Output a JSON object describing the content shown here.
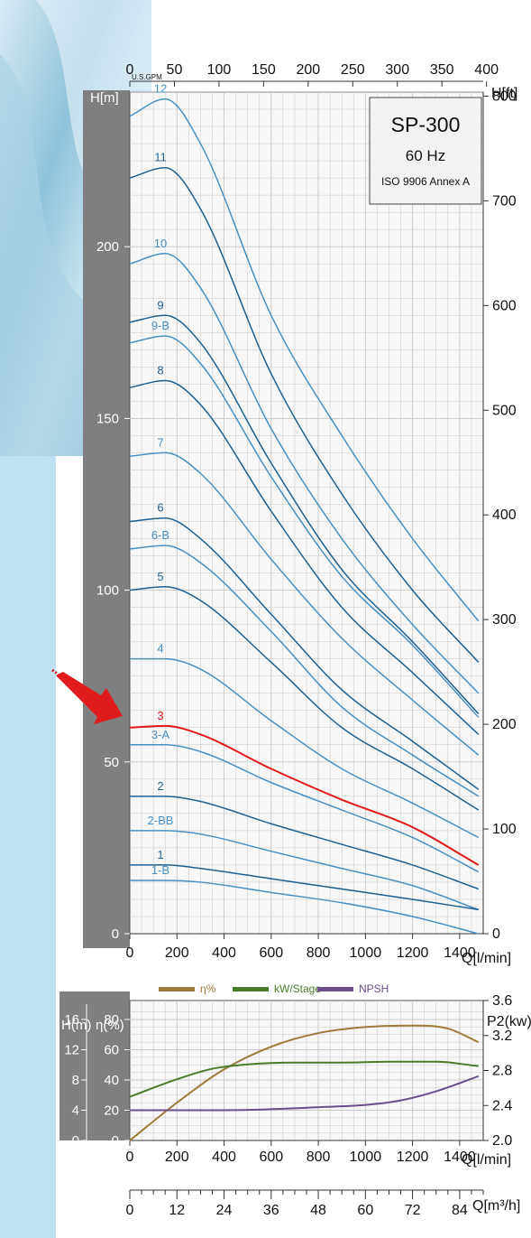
{
  "chart_data": [
    {
      "type": "line",
      "title": "SP-300",
      "frequency": "60 Hz",
      "standard": "ISO 9906 Annex A",
      "x_unit_label": "Q[l/min]",
      "x_top_unit_label": "U.S.GPM",
      "y_left_label": "H[m]",
      "y_right_label": "H[ft]",
      "xlim": [
        0,
        1500
      ],
      "ylim": [
        0,
        245
      ],
      "x_ticks": [
        "0",
        "200",
        "400",
        "600",
        "800",
        "1000",
        "1200",
        "1400"
      ],
      "x_top_ticks": [
        "0",
        "50",
        "100",
        "150",
        "200",
        "250",
        "300",
        "350",
        "400"
      ],
      "y_left_ticks": [
        "0",
        "50",
        "100",
        "150",
        "200"
      ],
      "y_right_ticks": [
        "0",
        "100",
        "200",
        "300",
        "400",
        "500",
        "600",
        "700",
        "800"
      ],
      "grid": true,
      "highlighted_curve": "3",
      "colors": {
        "dark": "#1f5f8f",
        "light": "#4a8fc2",
        "highlight": "#e01b1b",
        "panel": "#7f7f80",
        "grid": "#c8c8c8"
      },
      "series": [
        {
          "name": "12",
          "shade": "light",
          "x": [
            0,
            150,
            300,
            600,
            900,
            1200,
            1480
          ],
          "y": [
            238,
            243,
            230,
            180,
            145,
            115,
            91
          ]
        },
        {
          "name": "11",
          "shade": "dark",
          "x": [
            0,
            150,
            300,
            600,
            900,
            1200,
            1480
          ],
          "y": [
            220,
            223,
            211,
            163,
            128,
            100,
            79
          ]
        },
        {
          "name": "10",
          "shade": "light",
          "x": [
            0,
            150,
            300,
            600,
            900,
            1200,
            1480
          ],
          "y": [
            195,
            198,
            188,
            147,
            115,
            90,
            70
          ]
        },
        {
          "name": "9",
          "shade": "dark",
          "x": [
            0,
            150,
            300,
            600,
            900,
            1200,
            1480
          ],
          "y": [
            178,
            180,
            172,
            137,
            106,
            85,
            64
          ]
        },
        {
          "name": "9-B",
          "shade": "light",
          "x": [
            0,
            150,
            300,
            600,
            900,
            1200,
            1480
          ],
          "y": [
            172,
            174,
            166,
            133,
            104,
            84,
            63
          ]
        },
        {
          "name": "8",
          "shade": "dark",
          "x": [
            0,
            150,
            300,
            600,
            900,
            1200,
            1480
          ],
          "y": [
            159,
            161,
            154,
            123,
            95,
            76,
            58
          ]
        },
        {
          "name": "7",
          "shade": "light",
          "x": [
            0,
            150,
            300,
            600,
            900,
            1200,
            1480
          ],
          "y": [
            139,
            140,
            134,
            109,
            86,
            68,
            52
          ]
        },
        {
          "name": "6",
          "shade": "dark",
          "x": [
            0,
            150,
            300,
            600,
            900,
            1200,
            1480
          ],
          "y": [
            120,
            121,
            115,
            93,
            71,
            56,
            42
          ]
        },
        {
          "name": "6-B",
          "shade": "light",
          "x": [
            0,
            150,
            300,
            600,
            900,
            1200,
            1480
          ],
          "y": [
            112,
            113,
            108,
            88,
            66,
            52,
            40
          ]
        },
        {
          "name": "5",
          "shade": "dark",
          "x": [
            0,
            150,
            300,
            600,
            900,
            1200,
            1480
          ],
          "y": [
            100,
            101,
            97,
            79,
            60,
            48,
            36
          ]
        },
        {
          "name": "4",
          "shade": "light",
          "x": [
            0,
            150,
            300,
            600,
            900,
            1200,
            1480
          ],
          "y": [
            80,
            80,
            77,
            62,
            48,
            38,
            28
          ]
        },
        {
          "name": "3",
          "shade": "highlight",
          "x": [
            0,
            150,
            300,
            600,
            900,
            1200,
            1480
          ],
          "y": [
            60,
            60.5,
            58,
            48,
            39,
            31,
            20
          ]
        },
        {
          "name": "3-A",
          "shade": "light",
          "x": [
            0,
            150,
            300,
            600,
            900,
            1200,
            1480
          ],
          "y": [
            55,
            55,
            53,
            44,
            36,
            28,
            18
          ]
        },
        {
          "name": "2",
          "shade": "dark",
          "x": [
            0,
            150,
            300,
            600,
            900,
            1200,
            1480
          ],
          "y": [
            40,
            40,
            38.5,
            32,
            26,
            20,
            13
          ]
        },
        {
          "name": "2-BB",
          "shade": "light",
          "x": [
            0,
            150,
            300,
            600,
            900,
            1200,
            1480
          ],
          "y": [
            30,
            30,
            29,
            24,
            19,
            14,
            7
          ]
        },
        {
          "name": "1",
          "shade": "dark",
          "x": [
            0,
            150,
            300,
            600,
            900,
            1200,
            1480
          ],
          "y": [
            20,
            20,
            19,
            16,
            13,
            10,
            7
          ]
        },
        {
          "name": "1-B",
          "shade": "light",
          "x": [
            0,
            150,
            300,
            600,
            900,
            1200,
            1480
          ],
          "y": [
            15.5,
            15.5,
            15,
            12,
            9,
            5,
            0
          ]
        }
      ]
    },
    {
      "type": "line",
      "x_unit_label": "Q[l/min]",
      "x2_unit_label": "Q[m³/h]",
      "y_h_label": "H(m)",
      "y_eta_label": "η(%)",
      "y_right_label": "P2(kw)",
      "xlim": [
        0,
        1500
      ],
      "x_ticks": [
        "0",
        "200",
        "400",
        "600",
        "800",
        "1000",
        "1200",
        "1400"
      ],
      "x2_ticks": [
        "0",
        "12",
        "24",
        "36",
        "48",
        "60",
        "72",
        "84"
      ],
      "y_h_ticks": [
        "0",
        "4",
        "8",
        "12",
        "16"
      ],
      "y_eta_ticks": [
        "0",
        "20",
        "40",
        "60",
        "80"
      ],
      "y_right_ticks": [
        "2.0",
        "2.4",
        "2.8",
        "3.2",
        "3.6"
      ],
      "eta_range": [
        0,
        80
      ],
      "grid": true,
      "legend_position": "top",
      "series": [
        {
          "name": "η%",
          "color": "#9e7a3c",
          "scale": "eta",
          "x": [
            0,
            200,
            400,
            600,
            800,
            1000,
            1200,
            1350,
            1480
          ],
          "y": [
            0,
            25,
            47,
            62,
            71,
            75,
            76,
            74,
            65
          ]
        },
        {
          "name": "kW/Stage",
          "color": "#4a7a2c",
          "scale": "p2",
          "x": [
            0,
            200,
            350,
            500,
            700,
            900,
            1100,
            1300,
            1480
          ],
          "y": [
            2.5,
            2.7,
            2.82,
            2.87,
            2.89,
            2.89,
            2.9,
            2.9,
            2.85
          ]
        },
        {
          "name": "NPSH",
          "color": "#6b4e8c",
          "scale": "h",
          "x": [
            0,
            200,
            500,
            800,
            1000,
            1150,
            1300,
            1480
          ],
          "y": [
            4,
            4,
            4.05,
            4.4,
            4.7,
            5.3,
            6.5,
            8.5
          ]
        }
      ]
    }
  ]
}
